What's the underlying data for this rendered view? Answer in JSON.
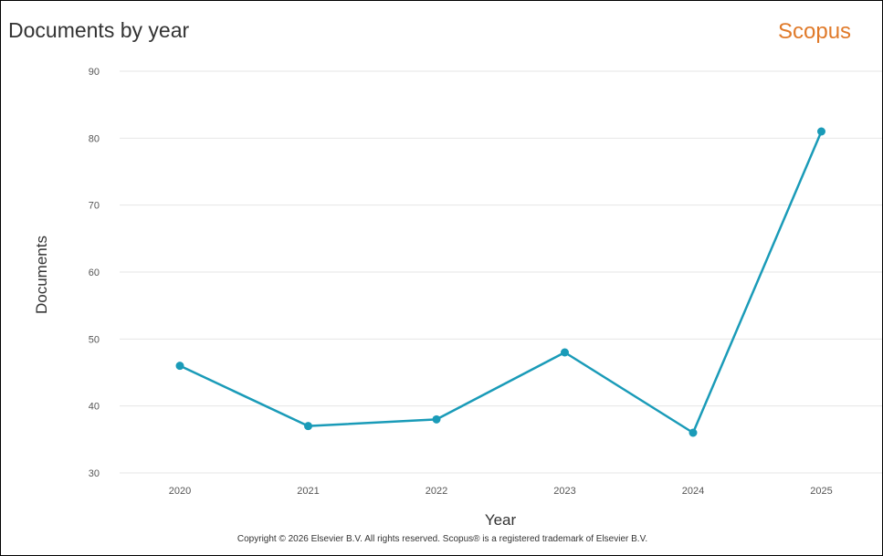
{
  "header": {
    "title": "Documents by year",
    "brand": "Scopus",
    "brand_color": "#e07a2a"
  },
  "footer": {
    "copyright": "Copyright © 2026 Elsevier B.V. All rights reserved. Scopus® is a registered trademark of Elsevier B.V."
  },
  "chart_data": {
    "type": "line",
    "title": "Documents by year",
    "xlabel": "Year",
    "ylabel": "Documents",
    "categories": [
      "2020",
      "2021",
      "2022",
      "2023",
      "2024",
      "2025"
    ],
    "series": [
      {
        "values": [
          46,
          37,
          38,
          48,
          36,
          81
        ],
        "color": "#1a9bb8"
      }
    ],
    "ylim": [
      30,
      90
    ],
    "yticks": [
      30,
      40,
      50,
      60,
      70,
      80,
      90
    ],
    "grid": true,
    "legend": "none"
  }
}
